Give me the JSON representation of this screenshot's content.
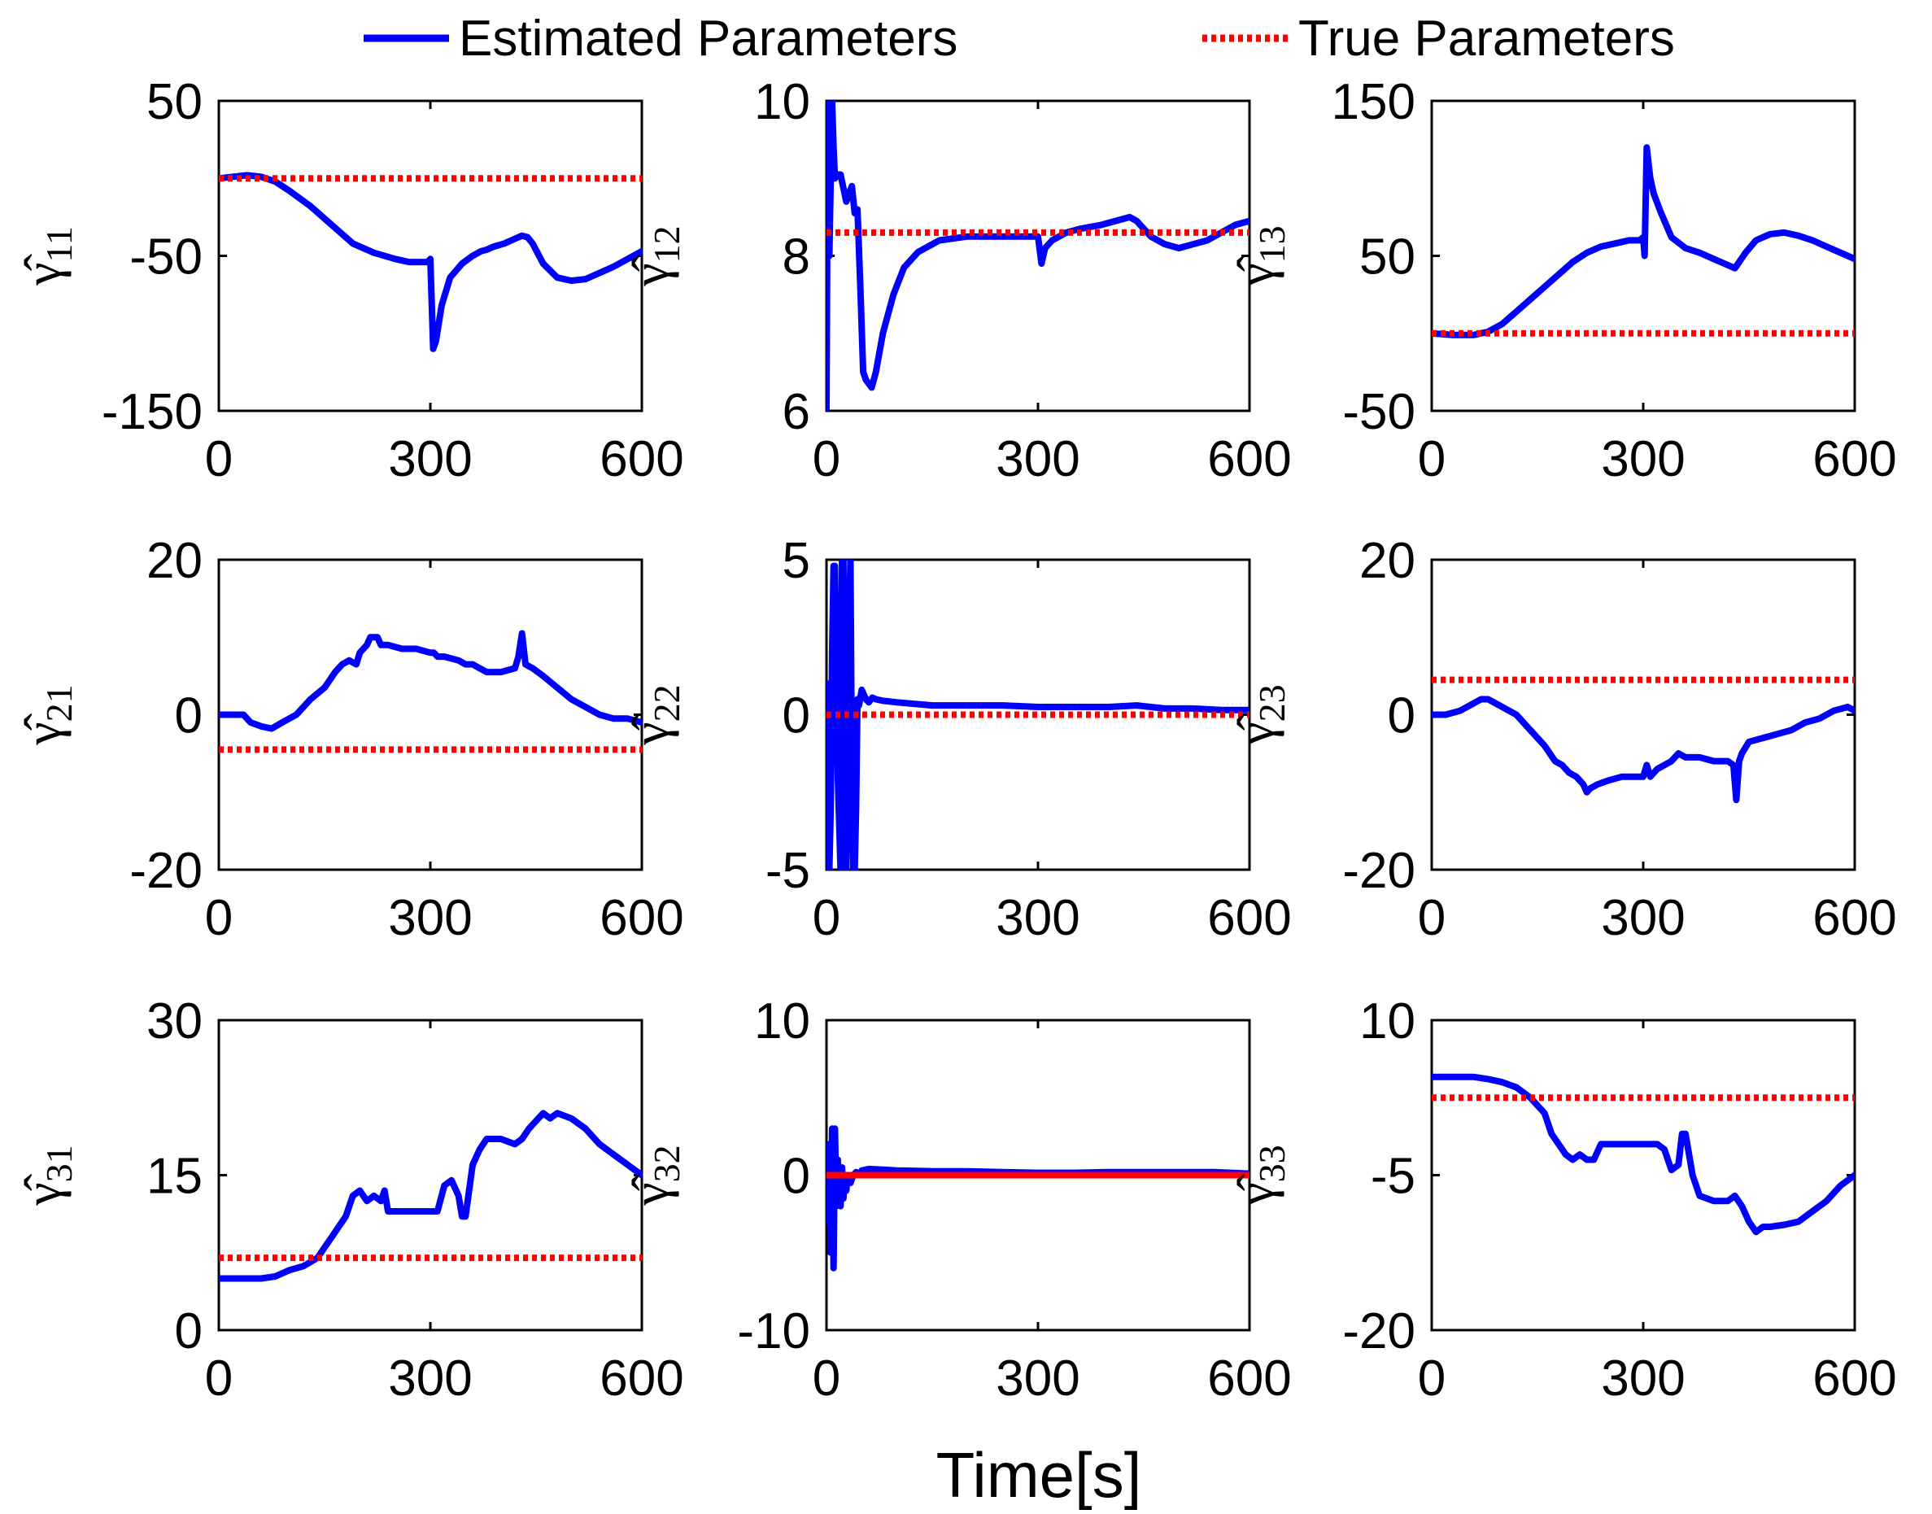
{
  "legend": {
    "estimated_label": "Estimated Parameters",
    "true_label": "True Parameters"
  },
  "colors": {
    "estimated": "#0000ff",
    "true": "#ff0000",
    "axis": "#000000"
  },
  "chart_data": [
    {
      "type": "line",
      "ylabel": "γ̂",
      "sub": "11",
      "xlim": [
        0,
        600
      ],
      "ylim": [
        -150,
        50
      ],
      "xticks": [
        0,
        300,
        600
      ],
      "yticks": [
        -150,
        -50,
        50
      ],
      "true_value": 0,
      "estimated": {
        "x": [
          0,
          20,
          40,
          60,
          80,
          100,
          130,
          160,
          190,
          220,
          250,
          270,
          290,
          296,
          300,
          304,
          308,
          316,
          328,
          345,
          360,
          372,
          380,
          390,
          405,
          420,
          430,
          438,
          445,
          460,
          480,
          500,
          520,
          540,
          560,
          580,
          600
        ],
        "y": [
          0,
          1,
          2,
          1,
          -2,
          -8,
          -18,
          -30,
          -42,
          -48,
          -52,
          -54,
          -54,
          -54,
          -52,
          -110,
          -105,
          -82,
          -64,
          -55,
          -50,
          -47,
          -46,
          -44,
          -42,
          -39,
          -37,
          -38,
          -42,
          -55,
          -64,
          -66,
          -65,
          -61,
          -57,
          -52,
          -47
        ]
      }
    },
    {
      "type": "line",
      "ylabel": "γ̂",
      "sub": "12",
      "xlim": [
        0,
        600
      ],
      "ylim": [
        6,
        10
      ],
      "xticks": [
        0,
        300,
        600
      ],
      "yticks": [
        6,
        8,
        10
      ],
      "true_value": 8.3,
      "estimated": {
        "x": [
          0,
          2,
          4,
          6,
          8,
          10,
          12,
          14,
          20,
          28,
          36,
          40,
          44,
          48,
          52,
          56,
          60,
          64,
          70,
          80,
          95,
          110,
          130,
          160,
          200,
          250,
          300,
          305,
          310,
          320,
          340,
          360,
          390,
          410,
          430,
          440,
          460,
          480,
          500,
          520,
          540,
          560,
          580,
          600
        ],
        "y": [
          6,
          10,
          8,
          9,
          10,
          9.4,
          9,
          9.05,
          9.05,
          8.7,
          8.9,
          8.55,
          8.6,
          7.6,
          6.5,
          6.4,
          6.35,
          6.3,
          6.5,
          7,
          7.5,
          7.85,
          8.05,
          8.2,
          8.25,
          8.25,
          8.25,
          7.9,
          8.1,
          8.2,
          8.3,
          8.35,
          8.4,
          8.45,
          8.5,
          8.45,
          8.25,
          8.15,
          8.1,
          8.15,
          8.2,
          8.3,
          8.4,
          8.45
        ]
      }
    },
    {
      "type": "line",
      "ylabel": "γ̂",
      "sub": "13",
      "xlim": [
        0,
        600
      ],
      "ylim": [
        -50,
        150
      ],
      "xticks": [
        0,
        300,
        600
      ],
      "yticks": [
        -50,
        50,
        150
      ],
      "true_value": 0,
      "estimated": {
        "x": [
          0,
          30,
          60,
          80,
          100,
          120,
          150,
          180,
          200,
          220,
          240,
          260,
          280,
          295,
          300,
          302,
          305,
          310,
          315,
          325,
          340,
          360,
          380,
          400,
          420,
          430,
          445,
          460,
          480,
          500,
          520,
          540,
          560,
          580,
          600
        ],
        "y": [
          0,
          -1,
          -1,
          1,
          6,
          14,
          26,
          38,
          46,
          52,
          56,
          58,
          60,
          60,
          62,
          50,
          120,
          100,
          90,
          78,
          62,
          55,
          52,
          48,
          44,
          42,
          52,
          60,
          64,
          65,
          63,
          60,
          56,
          52,
          48
        ]
      }
    },
    {
      "type": "line",
      "ylabel": "γ̂",
      "sub": "21",
      "xlim": [
        0,
        600
      ],
      "ylim": [
        -20,
        20
      ],
      "xticks": [
        0,
        300,
        600
      ],
      "yticks": [
        -20,
        0,
        20
      ],
      "true_value": -4.5,
      "estimated": {
        "x": [
          0,
          20,
          35,
          45,
          60,
          75,
          90,
          110,
          130,
          150,
          165,
          175,
          185,
          195,
          200,
          210,
          215,
          225,
          230,
          240,
          260,
          280,
          300,
          305,
          310,
          320,
          340,
          350,
          360,
          380,
          400,
          420,
          425,
          430,
          435,
          445,
          460,
          480,
          500,
          520,
          540,
          560,
          580,
          600
        ],
        "y": [
          0,
          0,
          0,
          -1,
          -1.5,
          -1.8,
          -1,
          0,
          2,
          3.5,
          5.5,
          6.5,
          7,
          6.5,
          8,
          9,
          10,
          10,
          9,
          9,
          8.5,
          8.5,
          8,
          8,
          7.5,
          7.5,
          7,
          6.5,
          6.5,
          5.5,
          5.5,
          6,
          7.5,
          10.5,
          6.5,
          6,
          5,
          3.5,
          2,
          1,
          0,
          -0.5,
          -0.5,
          -1
        ]
      }
    },
    {
      "type": "line",
      "ylabel": "γ̂",
      "sub": "22",
      "xlim": [
        0,
        600
      ],
      "ylim": [
        -5,
        5
      ],
      "xticks": [
        0,
        300,
        600
      ],
      "yticks": [
        -5,
        0,
        5
      ],
      "true_value": 0,
      "estimated": {
        "x": [
          0,
          2,
          4,
          6,
          8,
          10,
          12,
          16,
          20,
          22,
          24,
          26,
          28,
          30,
          32,
          34,
          36,
          38,
          40,
          42,
          44,
          46,
          50,
          56,
          60,
          65,
          70,
          80,
          100,
          150,
          200,
          250,
          300,
          350,
          400,
          440,
          480,
          520,
          560,
          600
        ],
        "y": [
          0,
          1,
          -5,
          -3,
          2,
          4.8,
          4.8,
          -2,
          -5,
          5,
          5,
          -1,
          -5,
          -1,
          3,
          5,
          -2,
          -5,
          -5,
          -3,
          0.5,
          0.3,
          0.8,
          0.5,
          0.4,
          0.55,
          0.5,
          0.45,
          0.4,
          0.3,
          0.3,
          0.3,
          0.25,
          0.25,
          0.25,
          0.3,
          0.2,
          0.2,
          0.15,
          0.15
        ]
      }
    },
    {
      "type": "line",
      "ylabel": "γ̂",
      "sub": "23",
      "xlim": [
        0,
        600
      ],
      "ylim": [
        -20,
        20
      ],
      "xticks": [
        0,
        300,
        600
      ],
      "yticks": [
        -20,
        0,
        20
      ],
      "true_value": 4.5,
      "estimated": {
        "x": [
          0,
          20,
          40,
          50,
          60,
          70,
          80,
          90,
          100,
          120,
          140,
          160,
          175,
          185,
          195,
          205,
          215,
          220,
          225,
          235,
          250,
          270,
          290,
          300,
          305,
          310,
          320,
          340,
          350,
          360,
          380,
          400,
          420,
          428,
          432,
          436,
          440,
          450,
          470,
          490,
          510,
          530,
          550,
          570,
          590,
          600
        ],
        "y": [
          0,
          0,
          0.5,
          1,
          1.5,
          2,
          2,
          1.5,
          1,
          0,
          -2,
          -4,
          -6,
          -6.5,
          -7.5,
          -8,
          -9,
          -10,
          -9.5,
          -9,
          -8.5,
          -8,
          -8,
          -8,
          -6.5,
          -8,
          -7,
          -6,
          -5,
          -5.5,
          -5.5,
          -6,
          -6,
          -6.5,
          -11,
          -6,
          -5,
          -3.5,
          -3,
          -2.5,
          -2,
          -1,
          -0.5,
          0.5,
          1,
          0.5
        ]
      }
    },
    {
      "type": "line",
      "ylabel": "γ̂",
      "sub": "31",
      "xlim": [
        0,
        600
      ],
      "ylim": [
        0,
        30
      ],
      "xticks": [
        0,
        300,
        600
      ],
      "yticks": [
        0,
        15,
        30
      ],
      "true_value": 7,
      "estimated": {
        "x": [
          0,
          20,
          40,
          60,
          80,
          100,
          120,
          140,
          150,
          160,
          170,
          180,
          190,
          200,
          210,
          220,
          230,
          235,
          240,
          250,
          260,
          280,
          300,
          310,
          320,
          330,
          340,
          345,
          350,
          360,
          370,
          380,
          400,
          420,
          430,
          440,
          460,
          470,
          480,
          500,
          520,
          540,
          560,
          580,
          600
        ],
        "y": [
          5,
          5,
          5,
          5,
          5.2,
          5.8,
          6.2,
          7,
          8,
          9,
          10,
          11,
          13,
          13.5,
          12.5,
          13,
          12.5,
          13.5,
          11.5,
          11.5,
          11.5,
          11.5,
          11.5,
          11.5,
          14,
          14.5,
          13,
          11,
          11,
          16,
          17.5,
          18.5,
          18.5,
          18,
          18.5,
          19.5,
          21,
          20.5,
          21,
          20.5,
          19.5,
          18,
          17,
          16,
          15
        ]
      }
    },
    {
      "type": "line",
      "ylabel": "γ̂",
      "sub": "32",
      "xlim": [
        0,
        600
      ],
      "ylim": [
        -10,
        10
      ],
      "xticks": [
        0,
        300,
        600
      ],
      "yticks": [
        -10,
        0,
        10
      ],
      "true_value": 0,
      "estimated": {
        "x": [
          0,
          2,
          4,
          6,
          8,
          10,
          12,
          14,
          16,
          18,
          20,
          22,
          24,
          26,
          28,
          30,
          34,
          38,
          42,
          46,
          50,
          60,
          80,
          100,
          150,
          200,
          250,
          300,
          350,
          400,
          450,
          500,
          550,
          600
        ],
        "y": [
          0,
          -3,
          2,
          -5,
          3,
          -6,
          3,
          -2,
          1,
          -1,
          -2,
          0.5,
          -1.5,
          0,
          -1,
          0,
          -0.5,
          0,
          0.2,
          0,
          0.3,
          0.4,
          0.35,
          0.3,
          0.25,
          0.25,
          0.2,
          0.15,
          0.15,
          0.2,
          0.2,
          0.2,
          0.2,
          0.1
        ]
      }
    },
    {
      "type": "line",
      "ylabel": "γ̂",
      "sub": "33",
      "xlim": [
        0,
        600
      ],
      "ylim": [
        -20,
        10
      ],
      "xticks": [
        0,
        300,
        600
      ],
      "yticks": [
        -20,
        -5,
        10
      ],
      "true_value": 2.5,
      "estimated": {
        "x": [
          0,
          20,
          40,
          60,
          80,
          100,
          120,
          140,
          160,
          170,
          180,
          190,
          200,
          210,
          220,
          230,
          240,
          260,
          280,
          300,
          320,
          330,
          340,
          350,
          355,
          360,
          370,
          380,
          400,
          420,
          430,
          440,
          450,
          460,
          470,
          480,
          500,
          520,
          540,
          560,
          580,
          600
        ],
        "y": [
          4.5,
          4.5,
          4.5,
          4.5,
          4.3,
          4,
          3.5,
          2.5,
          1,
          -1,
          -2,
          -3,
          -3.5,
          -3,
          -3.5,
          -3.5,
          -2,
          -2,
          -2,
          -2,
          -2,
          -2.5,
          -4.5,
          -4,
          -1,
          -1,
          -5,
          -7,
          -7.5,
          -7.5,
          -7,
          -8,
          -9.5,
          -10.5,
          -10,
          -10,
          -9.8,
          -9.5,
          -8.5,
          -7.5,
          -6,
          -5
        ]
      }
    }
  ],
  "xlabel": "Time[s]"
}
